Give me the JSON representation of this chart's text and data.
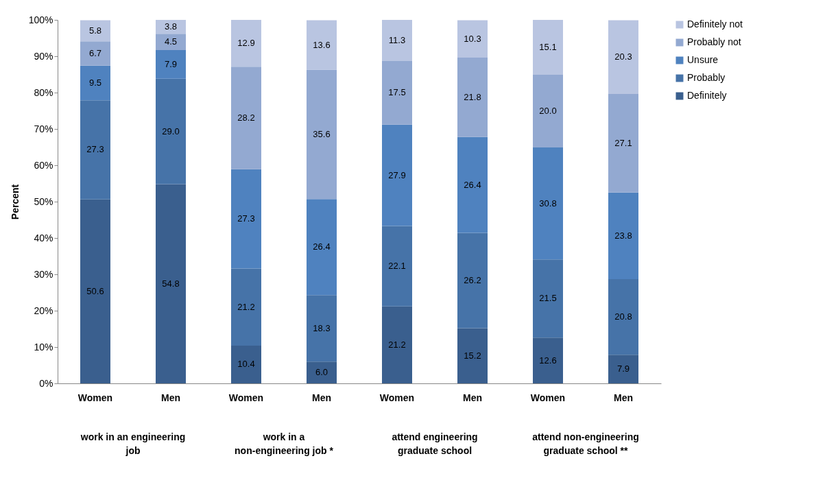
{
  "chart_data": {
    "type": "bar",
    "stacked": true,
    "ylabel": "Percent",
    "legend": "right",
    "grid": false,
    "categories": [
      "Women",
      "Men",
      "Women",
      "Men",
      "Women",
      "Men",
      "Women",
      "Men"
    ],
    "ylim": [
      0,
      100
    ],
    "yticks": [
      {
        "value": 0,
        "label": "0%"
      },
      {
        "value": 10,
        "label": "10%"
      },
      {
        "value": 20,
        "label": "20%"
      },
      {
        "value": 30,
        "label": "30%"
      },
      {
        "value": 40,
        "label": "40%"
      },
      {
        "value": 50,
        "label": "50%"
      },
      {
        "value": 60,
        "label": "60%"
      },
      {
        "value": 70,
        "label": "70%"
      },
      {
        "value": 80,
        "label": "80%"
      },
      {
        "value": 90,
        "label": "90%"
      },
      {
        "value": 100,
        "label": "100%"
      }
    ],
    "series": [
      {
        "name": "Definitely",
        "color": "#3a5f8e",
        "values": [
          50.6,
          54.8,
          10.4,
          6.0,
          21.2,
          15.2,
          12.6,
          7.9
        ],
        "value_labels": [
          "50.6",
          "54.8",
          "10.4",
          "6.0",
          "21.2",
          "15.2",
          "12.6",
          "7.9"
        ]
      },
      {
        "name": "Probably",
        "color": "#4673a8",
        "values": [
          27.3,
          29.0,
          21.2,
          18.3,
          22.1,
          26.2,
          21.5,
          20.8
        ],
        "value_labels": [
          "27.3",
          "29.0",
          "21.2",
          "18.3",
          "22.1",
          "26.2",
          "21.5",
          "20.8"
        ]
      },
      {
        "name": "Unsure",
        "color": "#4f82bf",
        "values": [
          9.5,
          7.9,
          27.3,
          26.4,
          27.9,
          26.4,
          30.8,
          23.8
        ],
        "value_labels": [
          "9.5",
          "7.9",
          "27.3",
          "26.4",
          "27.9",
          "26.4",
          "30.8",
          "23.8"
        ]
      },
      {
        "name": "Probably not",
        "color": "#93a9d1",
        "values": [
          6.7,
          4.5,
          28.2,
          35.6,
          17.5,
          21.8,
          20.0,
          27.1
        ],
        "value_labels": [
          "6.7",
          "4.5",
          "28.2",
          "35.6",
          "17.5",
          "21.8",
          "20.0",
          "27.1"
        ]
      },
      {
        "name": "Definitely not",
        "color": "#b9c5e1",
        "values": [
          5.8,
          3.8,
          12.9,
          13.6,
          11.3,
          10.3,
          15.1,
          20.3
        ],
        "value_labels": [
          "5.8",
          "3.8",
          "12.9",
          "13.6",
          "11.3",
          "10.3",
          "15.1",
          "20.3"
        ]
      }
    ],
    "annotations": [
      "work in an engineering job",
      "work in a non-engineering job *",
      "attend engineering graduate school",
      "attend non-engineering graduate school **"
    ]
  }
}
